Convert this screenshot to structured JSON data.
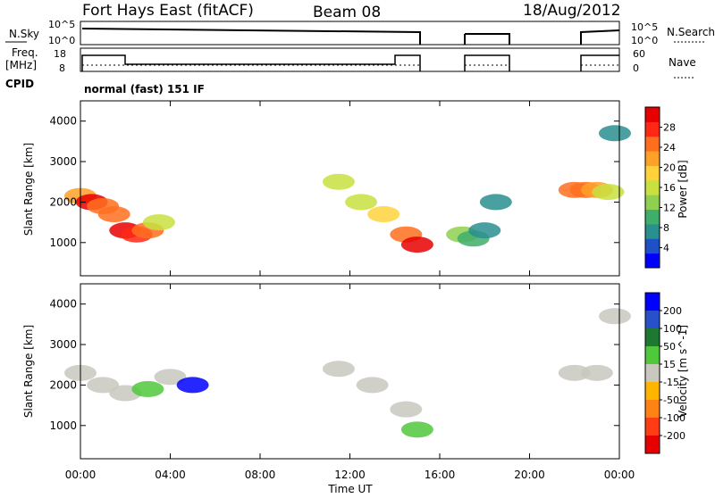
{
  "header": {
    "radar": "Fort Hays East (fitACF)",
    "beam": "Beam 08",
    "date": "18/Aug/2012"
  },
  "status_panel": {
    "left_top_label": "N.Sky",
    "left_bottom_label": "Freq.",
    "freq_unit": "[MHz]",
    "cpid_label": "CPID",
    "right_top_label": "N.Search",
    "right_bottom_label": "Nave",
    "nsky_ticks": [
      "10^5",
      "10^0"
    ],
    "nsearch_ticks": [
      "10^5",
      "10^0"
    ],
    "freq_ticks": [
      "18",
      "8"
    ],
    "nave_ticks": [
      "60",
      "0"
    ],
    "cpid_text": "normal (fast) 151 IF"
  },
  "chart_data": [
    {
      "type": "heatmap",
      "title": "",
      "xlabel": "",
      "ylabel": "Slant Range [km]",
      "x_ticks": [
        "00:00",
        "04:00",
        "08:00",
        "12:00",
        "16:00",
        "20:00",
        "00:00"
      ],
      "y_ticks": [
        "1000",
        "2000",
        "3000",
        "4000"
      ],
      "xlim": [
        0,
        24
      ],
      "ylim": [
        180,
        4500
      ],
      "colorbar": {
        "label": "Power [dB]",
        "ticks": [
          "4",
          "8",
          "12",
          "16",
          "20",
          "24",
          "28"
        ],
        "range": [
          0,
          30
        ],
        "colors": [
          "#0000ff",
          "#1e50c8",
          "#2a8f8f",
          "#3fae6a",
          "#8fd050",
          "#c8e040",
          "#ffd23c",
          "#ffa028",
          "#ff6e1e",
          "#ff2814",
          "#e60000"
        ]
      },
      "series": [
        {
          "x": [
            0.0,
            0.5,
            1.0,
            1.5,
            2.0,
            2.5,
            3.0,
            3.5
          ],
          "y": [
            2150,
            2000,
            1900,
            1700,
            1300,
            1200,
            1300,
            1500
          ],
          "value": [
            20,
            28,
            24,
            22,
            28,
            26,
            24,
            16
          ]
        },
        {
          "x": [
            11.5,
            12.5,
            13.5,
            14.5,
            15.0
          ],
          "y": [
            2500,
            2000,
            1700,
            1200,
            950
          ],
          "value": [
            14,
            16,
            18,
            22,
            28
          ]
        },
        {
          "x": [
            17.0,
            17.5,
            18.0,
            18.5
          ],
          "y": [
            1200,
            1100,
            1300,
            2000
          ],
          "value": [
            12,
            10,
            8,
            6
          ]
        },
        {
          "x": [
            22.0,
            22.5,
            23.0,
            23.5,
            23.8
          ],
          "y": [
            2300,
            2300,
            2300,
            2250,
            3700
          ],
          "value": [
            22,
            24,
            20,
            14,
            8
          ]
        }
      ]
    },
    {
      "type": "heatmap",
      "title": "",
      "xlabel": "Time UT",
      "ylabel": "Slant Range [km]",
      "x_ticks": [
        "00:00",
        "04:00",
        "08:00",
        "12:00",
        "16:00",
        "20:00",
        "00:00"
      ],
      "y_ticks": [
        "1000",
        "2000",
        "3000",
        "4000"
      ],
      "xlim": [
        0,
        24
      ],
      "ylim": [
        180,
        4500
      ],
      "colorbar": {
        "label": "Velocity [m s^-1]",
        "ticks": [
          "200",
          "100",
          "50",
          "15",
          "-15",
          "-50",
          "-100",
          "-200"
        ],
        "range": [
          -200,
          200
        ],
        "colors": [
          "#0000ff",
          "#2850c8",
          "#1e7832",
          "#50c83c",
          "#c8c8be",
          "#ffb400",
          "#ff8214",
          "#ff3c14",
          "#e60000"
        ]
      },
      "series": [
        {
          "x": [
            0.0,
            1.0,
            2.0,
            3.0,
            4.0,
            5.0
          ],
          "y": [
            2300,
            2000,
            1800,
            1900,
            2200,
            2000
          ],
          "value": [
            0,
            10,
            -5,
            30,
            0,
            250
          ]
        },
        {
          "x": [
            11.5,
            13.0,
            14.5,
            15.0
          ],
          "y": [
            2400,
            2000,
            1400,
            900
          ],
          "value": [
            0,
            0,
            -20,
            60
          ]
        },
        {
          "x": [
            22.0,
            23.0,
            23.8
          ],
          "y": [
            2300,
            2300,
            3700
          ],
          "value": [
            0,
            0,
            5
          ]
        }
      ]
    }
  ]
}
